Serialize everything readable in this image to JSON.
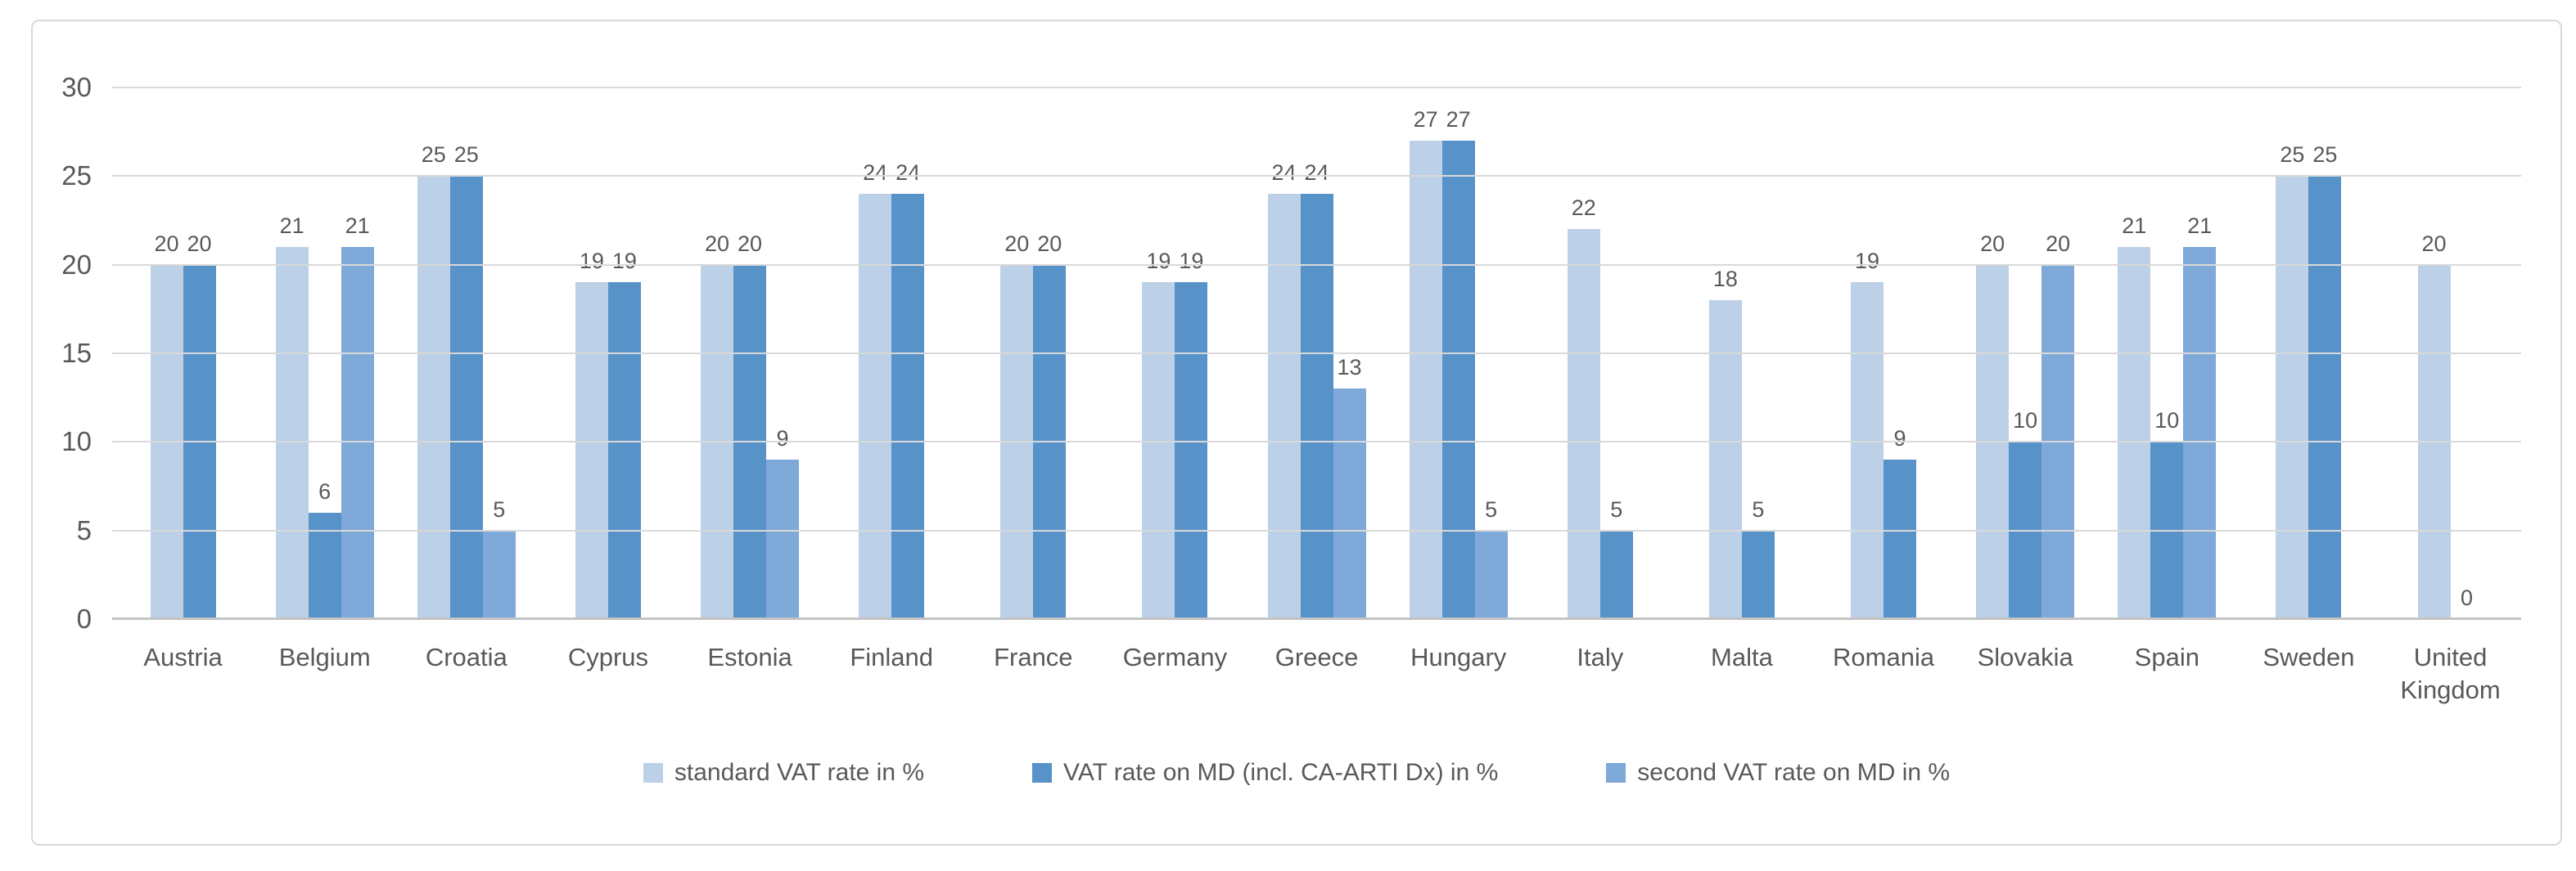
{
  "chart": {
    "background": "#ffffff",
    "frame_border_color": "#d9d9d9",
    "gridline_color": "#d9d9d9",
    "axis_line_color": "#c4c4c4",
    "text_color": "#595959"
  },
  "chart_data": {
    "type": "bar",
    "title": "",
    "xlabel": "",
    "ylabel": "",
    "ylim": [
      0,
      30
    ],
    "yticks": [
      0,
      5,
      10,
      15,
      20,
      25,
      30
    ],
    "grid": true,
    "data_labels": true,
    "legend_position": "bottom",
    "categories": [
      "Austria",
      "Belgium",
      "Croatia",
      "Cyprus",
      "Estonia",
      "Finland",
      "France",
      "Germany",
      "Greece",
      "Hungary",
      "Italy",
      "Malta",
      "Romania",
      "Slovakia",
      "Spain",
      "Sweden",
      "United Kingdom"
    ],
    "series": [
      {
        "name": "standard VAT rate in %",
        "color": "#bcd0e8",
        "values": [
          20,
          21,
          25,
          19,
          20,
          24,
          20,
          19,
          24,
          27,
          22,
          18,
          19,
          20,
          21,
          25,
          20
        ]
      },
      {
        "name": "VAT rate on MD (incl. CA-ARTI Dx) in %",
        "color": "#5792c8",
        "values": [
          20,
          6,
          25,
          19,
          20,
          24,
          20,
          19,
          24,
          27,
          5,
          5,
          9,
          10,
          10,
          25,
          0
        ]
      },
      {
        "name": "second VAT rate on MD in %",
        "color": "#7fa9d8",
        "values": [
          null,
          21,
          5,
          null,
          9,
          null,
          null,
          null,
          13,
          5,
          null,
          null,
          null,
          20,
          21,
          null,
          null
        ]
      }
    ]
  }
}
